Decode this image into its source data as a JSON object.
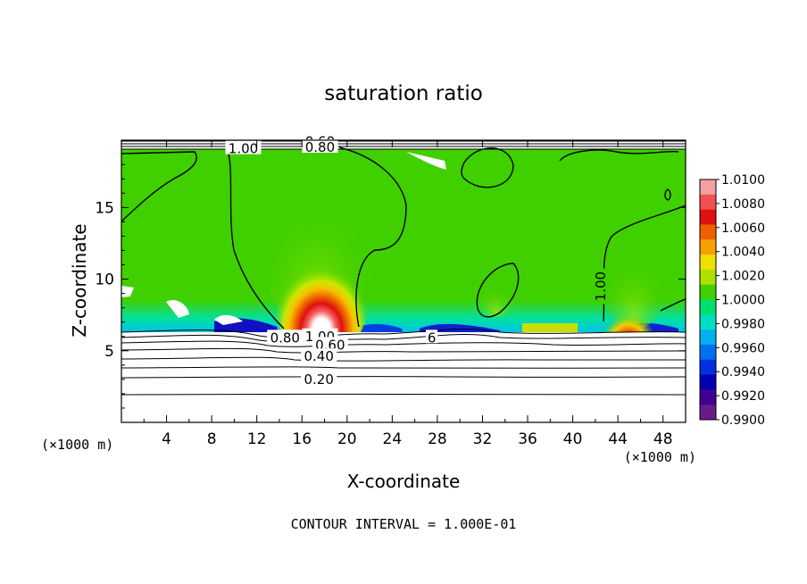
{
  "chart_data": {
    "type": "heatmap",
    "title": "saturation ratio",
    "xlabel": "X-coordinate",
    "ylabel": "Z-coordinate",
    "x_unit": "(×1000 m)",
    "z_unit": "(×1000 m)",
    "xlim": [
      0,
      50
    ],
    "ylim": [
      0,
      19.7
    ],
    "x_ticks": [
      "4",
      "8",
      "12",
      "16",
      "20",
      "24",
      "28",
      "32",
      "36",
      "40",
      "44",
      "48"
    ],
    "y_ticks": [
      "5",
      "10",
      "15"
    ],
    "footer": "CONTOUR INTERVAL = 1.000E-01",
    "colorbar": {
      "labels": [
        "1.0100",
        "1.0080",
        "1.0060",
        "1.0040",
        "1.0020",
        "1.0000",
        "0.9980",
        "0.9960",
        "0.9940",
        "0.9920",
        "0.9900"
      ],
      "colors": [
        "#f4a0a0",
        "#f05050",
        "#e01010",
        "#f06000",
        "#f8a000",
        "#f0e000",
        "#b0e000",
        "#40d000",
        "#00e070",
        "#00e0c0",
        "#00b0f0",
        "#0070f0",
        "#0030e0",
        "#0000b0",
        "#400090",
        "#6a1a8a"
      ]
    },
    "contour_labels": [
      {
        "text": "1.00",
        "x": 10.8,
        "z": 19.1
      },
      {
        "text": "0.60",
        "x": 17.6,
        "z": 19.6
      },
      {
        "text": "0.80",
        "x": 17.6,
        "z": 19.2
      },
      {
        "text": "1.00",
        "x": 42.5,
        "z": 9.5
      },
      {
        "text": "0.80",
        "x": 14.5,
        "z": 5.9
      },
      {
        "text": "1.00",
        "x": 17.6,
        "z": 6.0
      },
      {
        "text": "0.60",
        "x": 18.5,
        "z": 5.4
      },
      {
        "text": "0.40",
        "x": 17.5,
        "z": 4.6
      },
      {
        "text": "0.20",
        "x": 17.5,
        "z": 3.0
      },
      {
        "text": "6",
        "x": 27.5,
        "z": 5.9
      }
    ],
    "maxima": [
      {
        "x": 17.6,
        "z": 8.5,
        "value": 1.01
      },
      {
        "x": 44.2,
        "z": 7.0,
        "value": 1.008
      }
    ]
  }
}
